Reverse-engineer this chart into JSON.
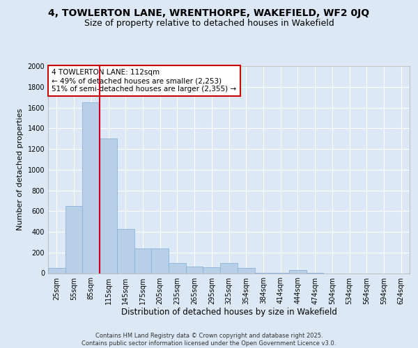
{
  "title_line1": "4, TOWLERTON LANE, WRENTHORPE, WAKEFIELD, WF2 0JQ",
  "title_line2": "Size of property relative to detached houses in Wakefield",
  "xlabel": "Distribution of detached houses by size in Wakefield",
  "ylabel": "Number of detached properties",
  "footer": "Contains HM Land Registry data © Crown copyright and database right 2025.\nContains public sector information licensed under the Open Government Licence v3.0.",
  "categories": [
    "25sqm",
    "55sqm",
    "85sqm",
    "115sqm",
    "145sqm",
    "175sqm",
    "205sqm",
    "235sqm",
    "265sqm",
    "295sqm",
    "325sqm",
    "354sqm",
    "384sqm",
    "414sqm",
    "444sqm",
    "474sqm",
    "504sqm",
    "534sqm",
    "564sqm",
    "594sqm",
    "624sqm"
  ],
  "values": [
    50,
    650,
    1650,
    1300,
    430,
    240,
    240,
    95,
    65,
    60,
    100,
    50,
    5,
    5,
    30,
    3,
    0,
    0,
    0,
    0,
    0
  ],
  "bar_color": "#b8cfe8",
  "bar_edge_color": "#8ab0d8",
  "vline_color": "#cc0000",
  "vline_pos": 2.5,
  "annotation_text": "4 TOWLERTON LANE: 112sqm\n← 49% of detached houses are smaller (2,253)\n51% of semi-detached houses are larger (2,355) →",
  "annotation_box_facecolor": "#ffffff",
  "annotation_box_edgecolor": "#cc0000",
  "ylim": [
    0,
    2000
  ],
  "yticks": [
    0,
    200,
    400,
    600,
    800,
    1000,
    1200,
    1400,
    1600,
    1800,
    2000
  ],
  "background_color": "#dce8f5",
  "plot_bg_color": "#dce8f5",
  "grid_color": "#ffffff",
  "title_fontsize": 10,
  "subtitle_fontsize": 9,
  "axis_label_fontsize": 8.5,
  "tick_fontsize": 7,
  "annotation_fontsize": 7.5,
  "ylabel_fontsize": 8
}
